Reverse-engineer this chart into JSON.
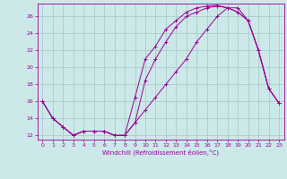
{
  "title": "",
  "xlabel": "Windchill (Refroidissement éolien,°C)",
  "background_color": "#cce8e8",
  "line_color": "#990099",
  "grid_color": "#aacccc",
  "xlim": [
    -0.5,
    23.5
  ],
  "ylim": [
    11.5,
    27.5
  ],
  "xticks": [
    0,
    1,
    2,
    3,
    4,
    5,
    6,
    7,
    8,
    9,
    10,
    11,
    12,
    13,
    14,
    15,
    16,
    17,
    18,
    19,
    20,
    21,
    22,
    23
  ],
  "yticks": [
    12,
    14,
    16,
    18,
    20,
    22,
    24,
    26
  ],
  "series": [
    {
      "x": [
        0,
        1,
        2,
        3,
        4,
        5,
        6,
        7,
        8,
        9,
        10,
        11,
        12,
        13,
        14,
        15,
        16,
        17,
        18,
        19,
        20,
        21,
        22,
        23
      ],
      "y": [
        16.0,
        14.0,
        13.0,
        12.0,
        12.5,
        12.5,
        12.5,
        12.0,
        12.0,
        13.5,
        18.5,
        21.0,
        23.0,
        24.8,
        26.0,
        26.5,
        27.0,
        27.2,
        27.0,
        26.5,
        25.5,
        22.0,
        17.5,
        15.8
      ]
    },
    {
      "x": [
        0,
        1,
        2,
        3,
        4,
        5,
        6,
        7,
        8,
        9,
        10,
        11,
        12,
        13,
        14,
        15,
        16,
        17,
        18,
        19,
        20,
        21,
        22,
        23
      ],
      "y": [
        16.0,
        14.0,
        13.0,
        12.0,
        12.5,
        12.5,
        12.5,
        12.0,
        12.0,
        16.5,
        21.0,
        22.5,
        24.5,
        25.5,
        26.5,
        27.0,
        27.2,
        27.3,
        27.0,
        26.5,
        25.5,
        22.0,
        17.5,
        15.8
      ]
    },
    {
      "x": [
        0,
        1,
        2,
        3,
        4,
        5,
        6,
        7,
        8,
        9,
        10,
        11,
        12,
        13,
        14,
        15,
        16,
        17,
        18,
        19,
        20,
        21,
        22,
        23
      ],
      "y": [
        16.0,
        14.0,
        13.0,
        12.0,
        12.5,
        12.5,
        12.5,
        12.0,
        12.0,
        13.5,
        15.0,
        16.5,
        18.0,
        19.5,
        21.0,
        23.0,
        24.5,
        26.0,
        27.0,
        27.0,
        25.5,
        22.0,
        17.5,
        15.8
      ]
    }
  ]
}
